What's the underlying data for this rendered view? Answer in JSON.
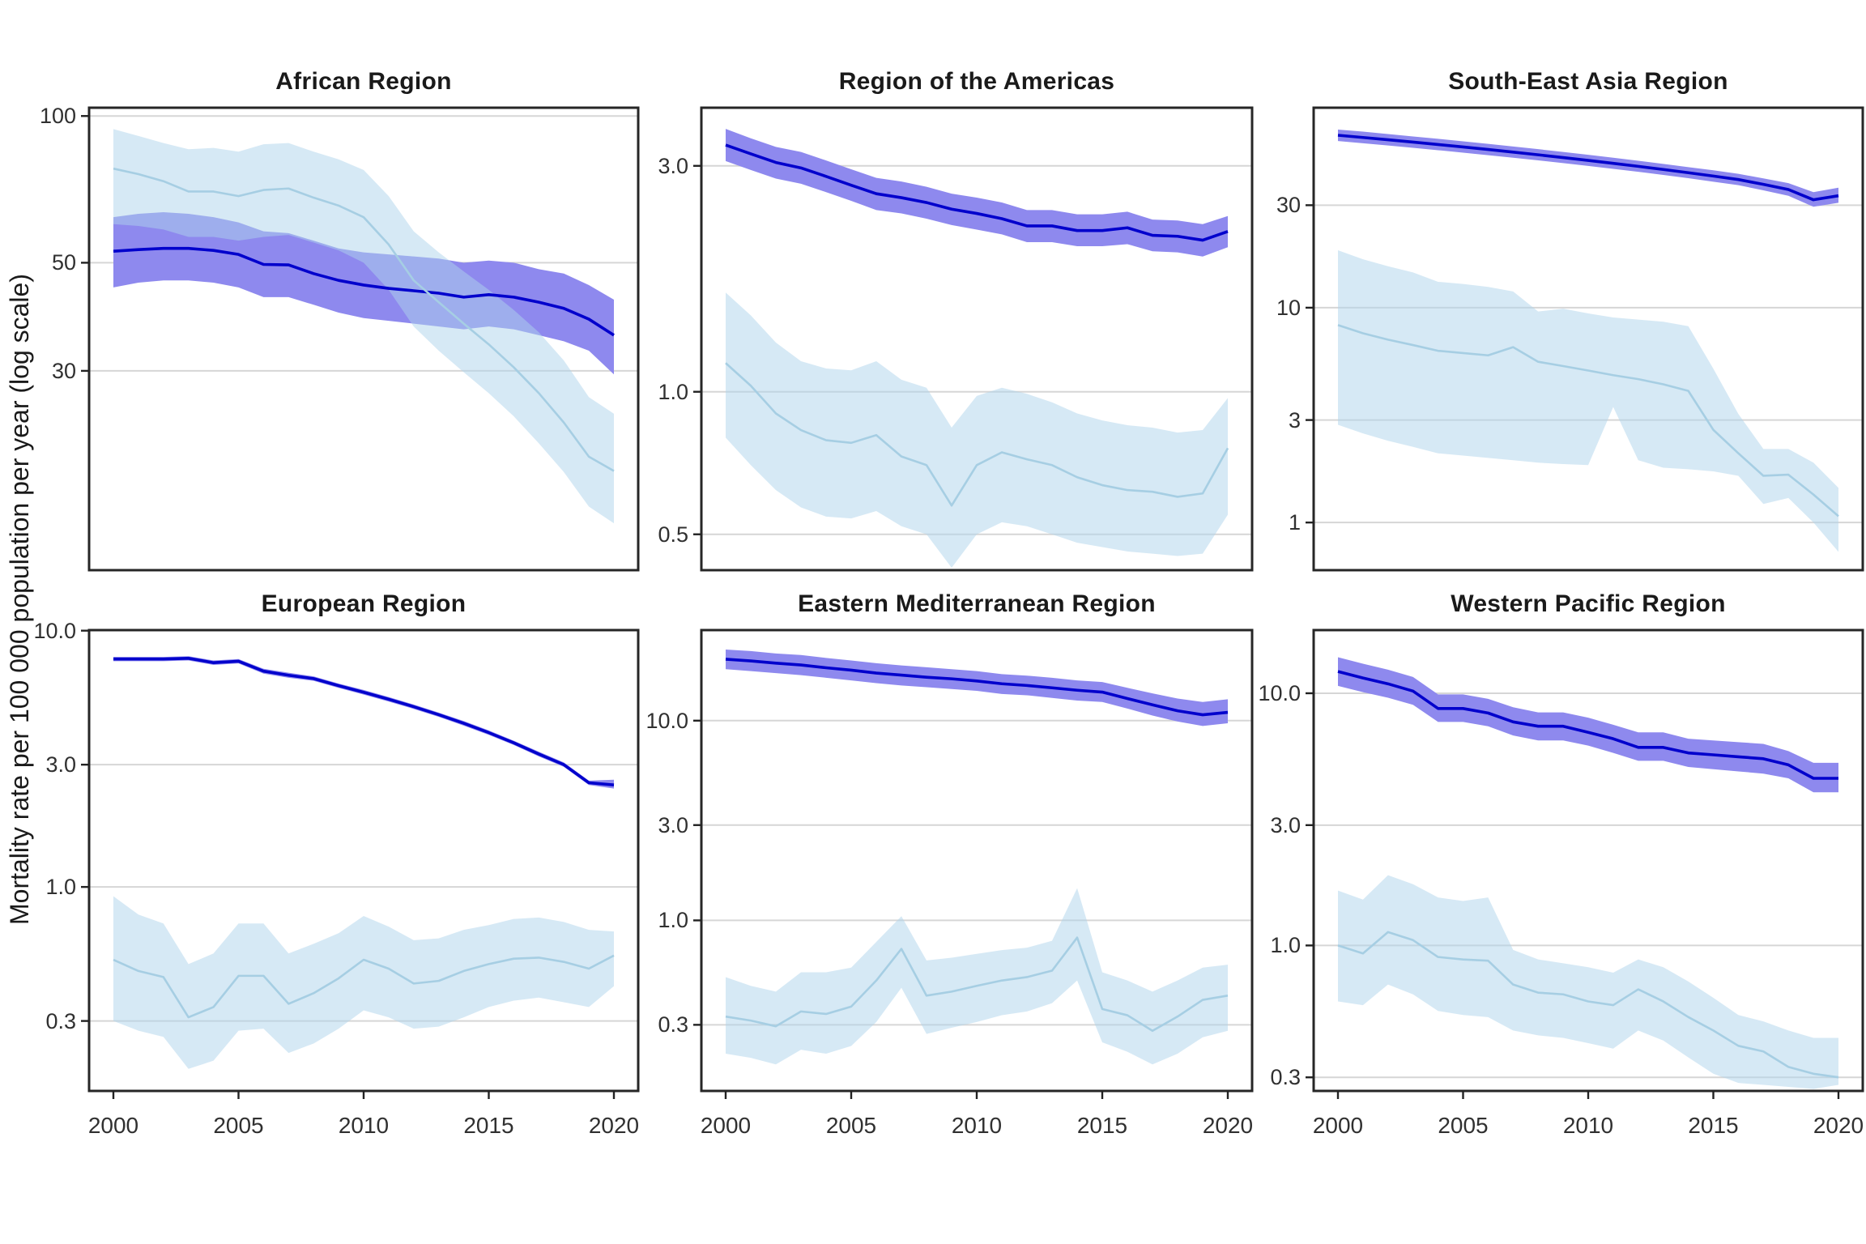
{
  "figure": {
    "background": "#FFFFFF"
  },
  "ylabel": "Mortality rate per 100 000 population per year (log scale)",
  "years": [
    2000,
    2001,
    2002,
    2003,
    2004,
    2005,
    2006,
    2007,
    2008,
    2009,
    2010,
    2011,
    2012,
    2013,
    2014,
    2015,
    2016,
    2017,
    2018,
    2019,
    2020
  ],
  "x_tick_years": [
    2000,
    2005,
    2010,
    2015,
    2020
  ],
  "x_tick_labels": [
    "2000",
    "2005",
    "2010",
    "2015",
    "2020"
  ],
  "colors": {
    "dark_line": "#0000CC",
    "dark_band": "#8E89EE",
    "light_line": "#A6CEE3",
    "light_band": "rgba(174,211,236,0.5)",
    "gridline": "#D6D6D6",
    "panel_border": "#262626",
    "tick_mark": "#222222",
    "text": "#1A1A1A"
  },
  "chart_data": [
    {
      "type": "line",
      "title": "African Region",
      "ylim": [
        11.7,
        104
      ],
      "yticks": [
        100,
        50,
        30
      ],
      "ytick_labels": [
        "100",
        "50",
        "30"
      ],
      "grid": true,
      "legend": "none",
      "series": [
        {
          "name": "dark-blue-series",
          "color": "#0000CC",
          "values": [
            52.8,
            53.2,
            53.5,
            53.5,
            53.0,
            52.0,
            49.6,
            49.5,
            47.5,
            46.0,
            45.0,
            44.3,
            43.8,
            43.3,
            42.5,
            43.0,
            42.5,
            41.5,
            40.3,
            38.3,
            35.5
          ],
          "band_upper": [
            62,
            63,
            63.5,
            63,
            62,
            60.5,
            58,
            57.5,
            55.5,
            53.5,
            52.5,
            52,
            51.5,
            51,
            50,
            50.5,
            50,
            48.5,
            47.5,
            45,
            42
          ],
          "band_lower": [
            44.5,
            45.5,
            46,
            46,
            45.5,
            44.5,
            42.5,
            42.5,
            41,
            39.5,
            38.5,
            38,
            37.5,
            37,
            36.5,
            37,
            36.5,
            35.5,
            34.5,
            33,
            29.5
          ]
        },
        {
          "name": "light-blue-series",
          "color": "#A6CEE3",
          "values": [
            78,
            76,
            73.5,
            70,
            70,
            68.5,
            70.5,
            71,
            68,
            65.5,
            62,
            54.5,
            46,
            41.5,
            37.5,
            34,
            30.5,
            27,
            23.5,
            20,
            18.7
          ],
          "band_upper": [
            94,
            91,
            88,
            85.5,
            86,
            84.5,
            87.5,
            88,
            84.5,
            81.5,
            77.5,
            68.5,
            58,
            52.5,
            48,
            44,
            40,
            36,
            31.5,
            26.5,
            24.5
          ],
          "band_lower": [
            60,
            59.5,
            58.5,
            56.5,
            56.5,
            55.5,
            56.5,
            57,
            55,
            53,
            50,
            44,
            37,
            33,
            29.8,
            27,
            24.2,
            21.3,
            18.6,
            15.8,
            14.6
          ]
        }
      ]
    },
    {
      "type": "line",
      "title": "Region of the Americas",
      "ylim": [
        0.42,
        3.98
      ],
      "yticks": [
        3.0,
        1.0,
        0.5
      ],
      "ytick_labels": [
        "3.0",
        "1.0",
        "0.5"
      ],
      "grid": true,
      "legend": "none",
      "series": [
        {
          "name": "dark-blue-series",
          "color": "#0000CC",
          "values": [
            3.32,
            3.18,
            3.05,
            2.97,
            2.85,
            2.73,
            2.62,
            2.57,
            2.51,
            2.43,
            2.38,
            2.32,
            2.24,
            2.24,
            2.19,
            2.19,
            2.22,
            2.14,
            2.13,
            2.09,
            2.18
          ],
          "band_upper": [
            3.59,
            3.43,
            3.29,
            3.21,
            3.08,
            2.95,
            2.83,
            2.78,
            2.71,
            2.62,
            2.57,
            2.51,
            2.42,
            2.42,
            2.37,
            2.37,
            2.4,
            2.31,
            2.3,
            2.26,
            2.35
          ],
          "band_lower": [
            3.07,
            2.94,
            2.82,
            2.75,
            2.64,
            2.53,
            2.42,
            2.38,
            2.32,
            2.25,
            2.2,
            2.15,
            2.07,
            2.07,
            2.03,
            2.03,
            2.05,
            1.98,
            1.97,
            1.93,
            2.02
          ]
        },
        {
          "name": "light-blue-series",
          "color": "#A6CEE3",
          "values": [
            1.15,
            1.03,
            0.9,
            0.83,
            0.79,
            0.78,
            0.81,
            0.73,
            0.7,
            0.575,
            0.7,
            0.745,
            0.72,
            0.7,
            0.66,
            0.635,
            0.62,
            0.615,
            0.6,
            0.61,
            0.76
          ],
          "band_upper": [
            1.62,
            1.45,
            1.27,
            1.16,
            1.12,
            1.11,
            1.16,
            1.06,
            1.02,
            0.84,
            0.98,
            1.02,
            0.99,
            0.95,
            0.9,
            0.87,
            0.85,
            0.84,
            0.82,
            0.83,
            0.97
          ],
          "band_lower": [
            0.8,
            0.7,
            0.62,
            0.57,
            0.545,
            0.54,
            0.56,
            0.52,
            0.5,
            0.425,
            0.5,
            0.53,
            0.52,
            0.5,
            0.48,
            0.47,
            0.46,
            0.455,
            0.45,
            0.455,
            0.55
          ]
        }
      ]
    },
    {
      "type": "line",
      "title": "South-East Asia Region",
      "ylim": [
        0.6,
        85.3
      ],
      "yticks": [
        30,
        10,
        3,
        1
      ],
      "ytick_labels": [
        "30",
        "10",
        "3",
        "1"
      ],
      "grid": true,
      "legend": "none",
      "series": [
        {
          "name": "dark-blue-series",
          "color": "#0000CC",
          "values": [
            63.5,
            62.0,
            60.5,
            59.0,
            57.5,
            56.0,
            54.5,
            53.0,
            51.5,
            50.0,
            48.5,
            47.0,
            45.5,
            44.0,
            42.5,
            41.0,
            39.5,
            37.5,
            35.5,
            31.8,
            33.2
          ],
          "band_upper": [
            67.5,
            66,
            64.3,
            62.7,
            61.1,
            59.5,
            57.9,
            56.3,
            54.7,
            53.1,
            51.5,
            49.9,
            48.3,
            46.7,
            45.1,
            43.6,
            42,
            40,
            38,
            34.5,
            36.2
          ],
          "band_lower": [
            59.7,
            58.3,
            56.9,
            55.5,
            54.1,
            52.7,
            51.3,
            49.9,
            48.5,
            47.1,
            45.7,
            44.3,
            42.9,
            41.5,
            40.1,
            38.6,
            37.2,
            35.2,
            33.2,
            29.5,
            30.8
          ]
        },
        {
          "name": "light-blue-series",
          "color": "#A6CEE3",
          "values": [
            8.3,
            7.6,
            7.1,
            6.7,
            6.3,
            6.15,
            6.0,
            6.55,
            5.6,
            5.35,
            5.1,
            4.85,
            4.65,
            4.4,
            4.1,
            2.7,
            2.1,
            1.65,
            1.67,
            1.35,
            1.07
          ],
          "band_upper": [
            18.5,
            16.8,
            15.6,
            14.6,
            13.2,
            12.9,
            12.5,
            11.9,
            9.6,
            9.9,
            9.4,
            9.0,
            8.8,
            8.6,
            8.2,
            5.2,
            3.2,
            2.2,
            2.2,
            1.9,
            1.45
          ],
          "band_lower": [
            2.85,
            2.6,
            2.4,
            2.25,
            2.1,
            2.05,
            2.0,
            1.95,
            1.9,
            1.87,
            1.85,
            3.45,
            1.95,
            1.8,
            1.77,
            1.73,
            1.65,
            1.22,
            1.3,
            1.0,
            0.73
          ]
        }
      ]
    },
    {
      "type": "line",
      "title": "European Region",
      "ylim": [
        0.16,
        10.05
      ],
      "yticks": [
        10.0,
        3.0,
        1.0,
        0.3
      ],
      "ytick_labels": [
        "10.0",
        "3.0",
        "1.0",
        "0.3"
      ],
      "grid": true,
      "legend": "none",
      "series": [
        {
          "name": "dark-blue-series",
          "color": "#0000CC",
          "values": [
            7.75,
            7.75,
            7.75,
            7.8,
            7.5,
            7.6,
            6.95,
            6.7,
            6.5,
            6.1,
            5.75,
            5.4,
            5.05,
            4.7,
            4.35,
            4.0,
            3.65,
            3.3,
            3.0,
            2.55,
            2.5
          ],
          "band_upper": [
            7.9,
            7.9,
            7.9,
            7.95,
            7.65,
            7.75,
            7.1,
            6.85,
            6.63,
            6.22,
            5.87,
            5.51,
            5.15,
            4.79,
            4.44,
            4.08,
            3.72,
            3.37,
            3.06,
            2.6,
            2.62
          ],
          "band_lower": [
            7.6,
            7.6,
            7.6,
            7.65,
            7.35,
            7.45,
            6.8,
            6.55,
            6.37,
            5.98,
            5.63,
            5.29,
            4.95,
            4.61,
            4.26,
            3.92,
            3.58,
            3.23,
            2.94,
            2.5,
            2.42
          ]
        },
        {
          "name": "light-blue-series",
          "color": "#A6CEE3",
          "values": [
            0.52,
            0.47,
            0.445,
            0.31,
            0.34,
            0.45,
            0.45,
            0.35,
            0.385,
            0.44,
            0.52,
            0.48,
            0.42,
            0.43,
            0.47,
            0.5,
            0.525,
            0.53,
            0.51,
            0.48,
            0.54
          ],
          "band_upper": [
            0.92,
            0.78,
            0.72,
            0.5,
            0.55,
            0.72,
            0.72,
            0.55,
            0.6,
            0.66,
            0.77,
            0.7,
            0.62,
            0.63,
            0.68,
            0.71,
            0.75,
            0.76,
            0.73,
            0.68,
            0.67
          ],
          "band_lower": [
            0.3,
            0.275,
            0.26,
            0.195,
            0.21,
            0.275,
            0.28,
            0.225,
            0.245,
            0.28,
            0.33,
            0.31,
            0.28,
            0.285,
            0.31,
            0.34,
            0.36,
            0.37,
            0.355,
            0.34,
            0.41
          ]
        }
      ]
    },
    {
      "type": "line",
      "title": "Eastern Mediterranean Region",
      "ylim": [
        0.14,
        28.4
      ],
      "yticks": [
        10.0,
        3.0,
        1.0,
        0.3
      ],
      "ytick_labels": [
        "10.0",
        "3.0",
        "1.0",
        "0.3"
      ],
      "grid": true,
      "legend": "none",
      "series": [
        {
          "name": "dark-blue-series",
          "color": "#0000CC",
          "values": [
            20.3,
            19.9,
            19.4,
            19.0,
            18.4,
            17.9,
            17.3,
            16.9,
            16.5,
            16.2,
            15.8,
            15.3,
            15.0,
            14.6,
            14.2,
            13.9,
            12.9,
            12.0,
            11.2,
            10.7,
            11.0
          ],
          "band_upper": [
            22.7,
            22.3,
            21.7,
            21.3,
            20.6,
            20.0,
            19.4,
            18.9,
            18.5,
            18.1,
            17.7,
            17.1,
            16.8,
            16.4,
            15.9,
            15.6,
            14.6,
            13.7,
            12.9,
            12.4,
            12.8
          ],
          "band_lower": [
            18.1,
            17.7,
            17.3,
            16.9,
            16.4,
            15.9,
            15.4,
            15.0,
            14.7,
            14.4,
            14.1,
            13.6,
            13.4,
            13.0,
            12.6,
            12.4,
            11.5,
            10.6,
            9.9,
            9.4,
            9.7
          ]
        },
        {
          "name": "light-blue-series",
          "color": "#A6CEE3",
          "values": [
            0.33,
            0.315,
            0.295,
            0.35,
            0.34,
            0.37,
            0.5,
            0.72,
            0.42,
            0.44,
            0.47,
            0.5,
            0.52,
            0.56,
            0.82,
            0.36,
            0.335,
            0.28,
            0.33,
            0.4,
            0.42
          ],
          "band_upper": [
            0.52,
            0.47,
            0.44,
            0.55,
            0.55,
            0.58,
            0.78,
            1.05,
            0.63,
            0.65,
            0.68,
            0.71,
            0.73,
            0.79,
            1.45,
            0.55,
            0.5,
            0.44,
            0.5,
            0.58,
            0.6
          ],
          "band_lower": [
            0.215,
            0.205,
            0.19,
            0.225,
            0.215,
            0.235,
            0.31,
            0.46,
            0.27,
            0.29,
            0.31,
            0.335,
            0.35,
            0.385,
            0.5,
            0.245,
            0.22,
            0.19,
            0.215,
            0.26,
            0.28
          ]
        }
      ]
    },
    {
      "type": "line",
      "title": "Western Pacific Region",
      "ylim": [
        0.265,
        17.8
      ],
      "yticks": [
        10.0,
        3.0,
        1.0,
        0.3
      ],
      "ytick_labels": [
        "10.0",
        "3.0",
        "1.0",
        "0.3"
      ],
      "grid": true,
      "legend": "none",
      "series": [
        {
          "name": "dark-blue-series",
          "color": "#0000CC",
          "values": [
            12.2,
            11.5,
            10.9,
            10.2,
            8.7,
            8.7,
            8.35,
            7.7,
            7.4,
            7.4,
            7.0,
            6.6,
            6.1,
            6.1,
            5.8,
            5.7,
            5.6,
            5.5,
            5.2,
            4.6,
            4.6
          ],
          "band_upper": [
            13.9,
            13.1,
            12.4,
            11.6,
            9.9,
            9.9,
            9.5,
            8.8,
            8.4,
            8.4,
            8.0,
            7.5,
            7.0,
            7.0,
            6.6,
            6.5,
            6.4,
            6.3,
            5.9,
            5.3,
            5.3
          ],
          "band_lower": [
            10.7,
            10.1,
            9.6,
            9.0,
            7.7,
            7.7,
            7.4,
            6.8,
            6.5,
            6.5,
            6.2,
            5.8,
            5.4,
            5.4,
            5.1,
            5.0,
            4.9,
            4.8,
            4.6,
            4.05,
            4.05
          ]
        },
        {
          "name": "light-blue-series",
          "color": "#A6CEE3",
          "values": [
            1.0,
            0.93,
            1.13,
            1.05,
            0.9,
            0.88,
            0.87,
            0.7,
            0.65,
            0.64,
            0.6,
            0.58,
            0.67,
            0.6,
            0.52,
            0.46,
            0.4,
            0.38,
            0.33,
            0.31,
            0.3
          ],
          "band_upper": [
            1.65,
            1.52,
            1.9,
            1.75,
            1.55,
            1.5,
            1.55,
            0.96,
            0.88,
            0.85,
            0.82,
            0.78,
            0.88,
            0.82,
            0.72,
            0.62,
            0.53,
            0.5,
            0.46,
            0.43,
            0.43
          ],
          "band_lower": [
            0.6,
            0.58,
            0.7,
            0.64,
            0.55,
            0.53,
            0.52,
            0.46,
            0.44,
            0.43,
            0.41,
            0.39,
            0.46,
            0.42,
            0.36,
            0.31,
            0.285,
            0.28,
            0.275,
            0.27,
            0.28
          ]
        }
      ]
    }
  ]
}
